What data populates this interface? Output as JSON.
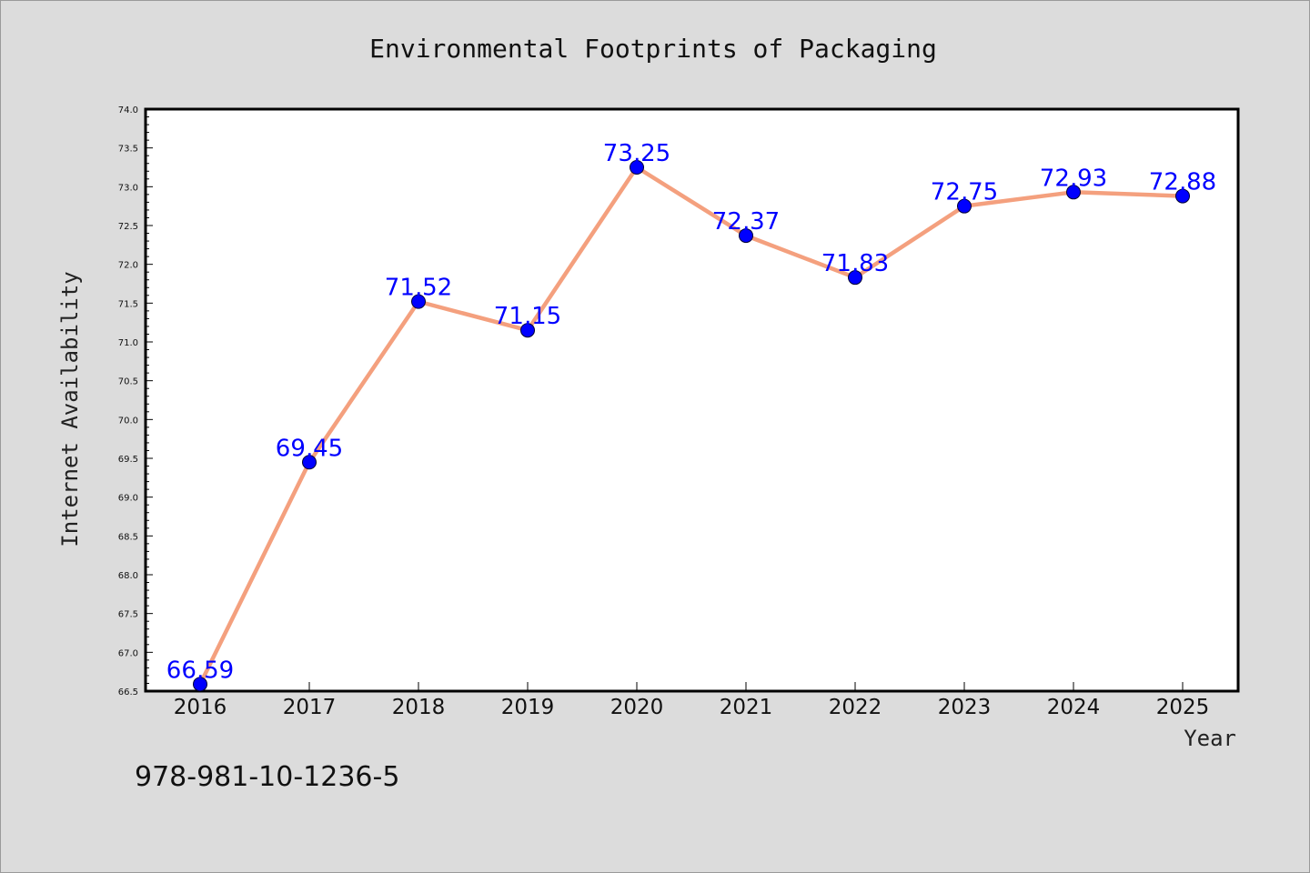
{
  "chart_data": {
    "type": "line",
    "title": "Environmental Footprints of Packaging",
    "xlabel": "Year",
    "ylabel": "Internet Availability",
    "x": [
      "2016",
      "2017",
      "2018",
      "2019",
      "2020",
      "2021",
      "2022",
      "2023",
      "2024",
      "2025"
    ],
    "values": [
      66.59,
      69.45,
      71.52,
      71.15,
      73.25,
      72.37,
      71.83,
      72.75,
      72.93,
      72.88
    ],
    "data_labels": [
      "66,59",
      "69,45",
      "71,52",
      "71,15",
      "73,25",
      "72,37",
      "71,83",
      "72,75",
      "72,93",
      "72,88"
    ],
    "ylim": [
      66.5,
      74.0
    ],
    "yticks": [
      "66.5",
      "67.0",
      "67.5",
      "68.0",
      "68.5",
      "69.0",
      "69.5",
      "70.0",
      "70.5",
      "71.0",
      "71.5",
      "72.0",
      "72.5",
      "73.0",
      "73.5",
      "74.0"
    ],
    "grid": false,
    "legend": "none",
    "line_color": "#f4a07e",
    "marker_color": "#0000ff",
    "label_color": "#0000ff"
  },
  "footer": {
    "isbn": "978-981-10-1236-5"
  }
}
